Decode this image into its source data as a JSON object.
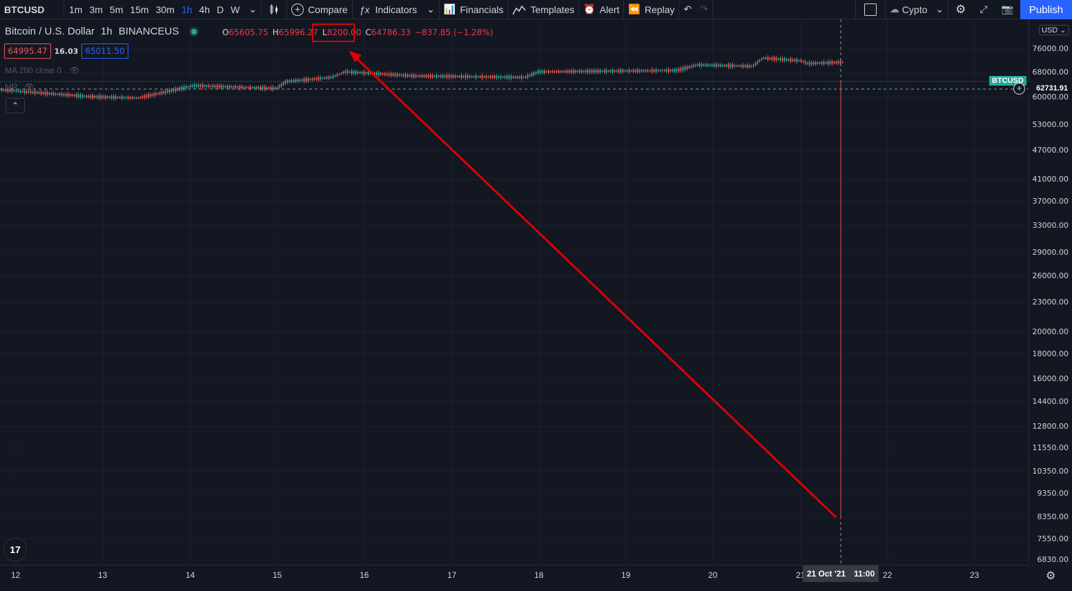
{
  "toolbar": {
    "symbol": "BTCUSD",
    "intervals": [
      "1m",
      "3m",
      "5m",
      "15m",
      "30m",
      "1h",
      "4h",
      "D",
      "W"
    ],
    "active_interval": "1h",
    "compare": "Compare",
    "indicators": "Indicators",
    "financials": "Financials",
    "templates": "Templates",
    "alert": "Alert",
    "replay": "Replay",
    "layout": "Cypto",
    "publish": "Publish"
  },
  "legend": {
    "title": "Bitcoin / U.S. Dollar",
    "interval": "1h",
    "exchange": "BINANCEUS",
    "o_key": "O",
    "o": "65605.75",
    "h_key": "H",
    "h": "65996.27",
    "l_key": "L",
    "l": "8200.00",
    "c_key": "C",
    "c": "64786.33",
    "change": "−837.85 (−1.28%)",
    "bid": "64995.47",
    "spread": "16.03",
    "ask": "65011.50",
    "ma": "MA 200 close 0",
    "mr": "MR"
  },
  "yaxis": {
    "currency": "USD",
    "labels": [
      "76000.00",
      "68000.00",
      "60000.00",
      "53000.00",
      "47000.00",
      "41000.00",
      "37000.00",
      "33000.00",
      "29000.00",
      "26000.00",
      "23000.00",
      "20000.00",
      "18000.00",
      "16000.00",
      "14400.00",
      "12800.00",
      "11550.00",
      "10350.00",
      "9350.00",
      "8350.00",
      "7550.00",
      "6830.00"
    ],
    "last_badge": "BTCUSD",
    "cursor_price": "62731.91"
  },
  "xaxis": {
    "labels": [
      "12",
      "13",
      "14",
      "15",
      "16",
      "17",
      "18",
      "19",
      "20",
      "21",
      "22",
      "23"
    ],
    "cursor_label": "21 Oct '21",
    "cursor_time": "11:00"
  },
  "colors": {
    "up": "#26a69a",
    "down": "#ef5350",
    "annotation": "#e00000",
    "accent": "#2962ff"
  }
}
